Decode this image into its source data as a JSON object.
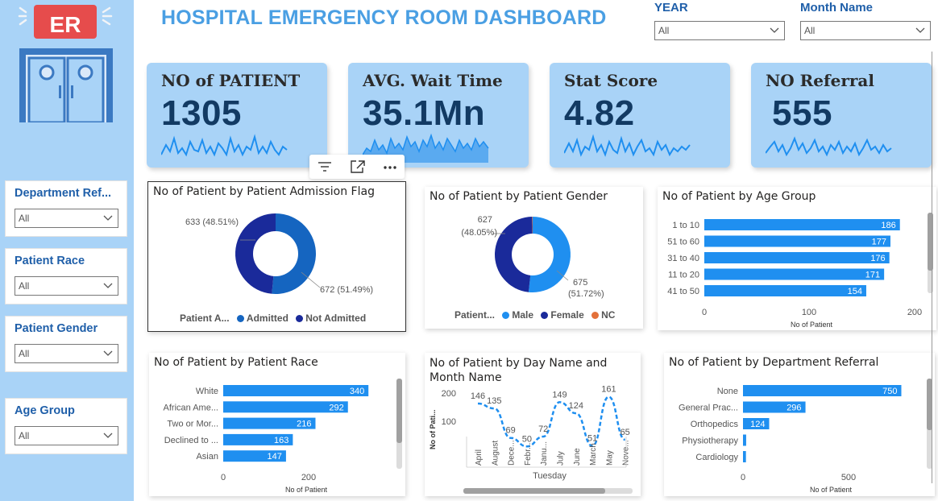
{
  "title": "HOSPITAL EMERGENCY ROOM DASHBOARD",
  "logo": {
    "text": "ER"
  },
  "header_slicers": [
    {
      "label": "YEAR",
      "value": "All"
    },
    {
      "label": "Month Name",
      "value": "All"
    }
  ],
  "sidebar_slicers": [
    {
      "label": "Department Ref...",
      "value": "All"
    },
    {
      "label": "Patient Race",
      "value": "All"
    },
    {
      "label": "Patient Gender",
      "value": "All"
    },
    {
      "label": "Age Group",
      "value": "All"
    }
  ],
  "kpis": [
    {
      "title": "NO of PATIENT",
      "value": "1305"
    },
    {
      "title": "AVG. Wait Time",
      "value": "35.1Mn"
    },
    {
      "title": "Stat Score",
      "value": "4.82"
    },
    {
      "title": "NO Referral",
      "value": "555"
    }
  ],
  "colors": {
    "accent": "#1f8ff0",
    "dark_blue": "#1a2a9a",
    "mid_blue": "#1565c0",
    "sidebar": "#a9d3f7",
    "orange": "#e3703a"
  },
  "charts": {
    "admission": {
      "title": "No of Patient by Patient Admission Flag",
      "legend_title": "Patient A...",
      "legend": [
        "Admitted",
        "Not Admitted"
      ],
      "labels": [
        "633 (48.51%)",
        "672 (51.49%)"
      ]
    },
    "gender": {
      "title": "No of Patient by Patient Gender",
      "legend_title": "Patient...",
      "legend": [
        "Male",
        "Female",
        "NC"
      ],
      "labels": [
        "627",
        "(48.05%)",
        "675",
        "(51.72%)"
      ]
    },
    "age": {
      "title": "No of Patient by Age Group",
      "xlabel": "No of Patient",
      "ticks": [
        "0",
        "100",
        "200"
      ]
    },
    "race": {
      "title": "No of Patient by Patient Race",
      "xlabel": "No of Patient",
      "ticks": [
        "0",
        "200"
      ]
    },
    "daymonth": {
      "title": "No of Patient by Day Name and Month Name",
      "ylabel": "No of Pati...",
      "xgroup": "Tuesday",
      "yticks": [
        "200",
        "100"
      ]
    },
    "referral": {
      "title": "No of Patient by Department Referral",
      "xlabel": "No of Patient",
      "ticks": [
        "0",
        "500"
      ]
    }
  },
  "chart_data": [
    {
      "type": "pie",
      "title": "No of Patient by Patient Admission Flag",
      "categories": [
        "Admitted",
        "Not Admitted"
      ],
      "values": [
        672,
        633
      ],
      "percent": [
        51.49,
        48.51
      ],
      "colors": [
        "#1565c0",
        "#1a2a9a"
      ]
    },
    {
      "type": "pie",
      "title": "No of Patient by Patient Gender",
      "categories": [
        "Male",
        "Female",
        "NC"
      ],
      "values": [
        675,
        627,
        3
      ],
      "percent": [
        51.72,
        48.05,
        0.23
      ],
      "colors": [
        "#1f8ff0",
        "#1a2a9a",
        "#e3703a"
      ]
    },
    {
      "type": "bar",
      "orientation": "horizontal",
      "title": "No of Patient by Age Group",
      "categories": [
        "1 to 10",
        "51 to 60",
        "31 to 40",
        "11 to 20",
        "41 to 50"
      ],
      "values": [
        186,
        177,
        176,
        171,
        154
      ],
      "xlabel": "No of Patient",
      "xlim": [
        0,
        200
      ]
    },
    {
      "type": "bar",
      "orientation": "horizontal",
      "title": "No of Patient by Patient Race",
      "categories": [
        "White",
        "African Ame...",
        "Two or Mor...",
        "Declined to ...",
        "Asian"
      ],
      "values": [
        340,
        292,
        216,
        163,
        147
      ],
      "xlabel": "No of Patient",
      "xlim": [
        0,
        400
      ]
    },
    {
      "type": "line",
      "title": "No of Patient by Day Name and Month Name",
      "categories": [
        "April",
        "August",
        "Dece...",
        "Febr...",
        "Janu...",
        "July",
        "June",
        "March",
        "May",
        "Nove..."
      ],
      "values": [
        146,
        135,
        69,
        50,
        72,
        149,
        124,
        51,
        161,
        65
      ],
      "ylabel": "No of Pati...",
      "xgroup": "Tuesday",
      "ylim": [
        0,
        200
      ]
    },
    {
      "type": "bar",
      "orientation": "horizontal",
      "title": "No of Patient by Department Referral",
      "categories": [
        "None",
        "General Prac...",
        "Orthopedics",
        "Physiotherapy",
        "Cardiology"
      ],
      "values": [
        750,
        296,
        124,
        15,
        14
      ],
      "xlabel": "No of Patient",
      "xlim": [
        0,
        1000
      ]
    }
  ]
}
